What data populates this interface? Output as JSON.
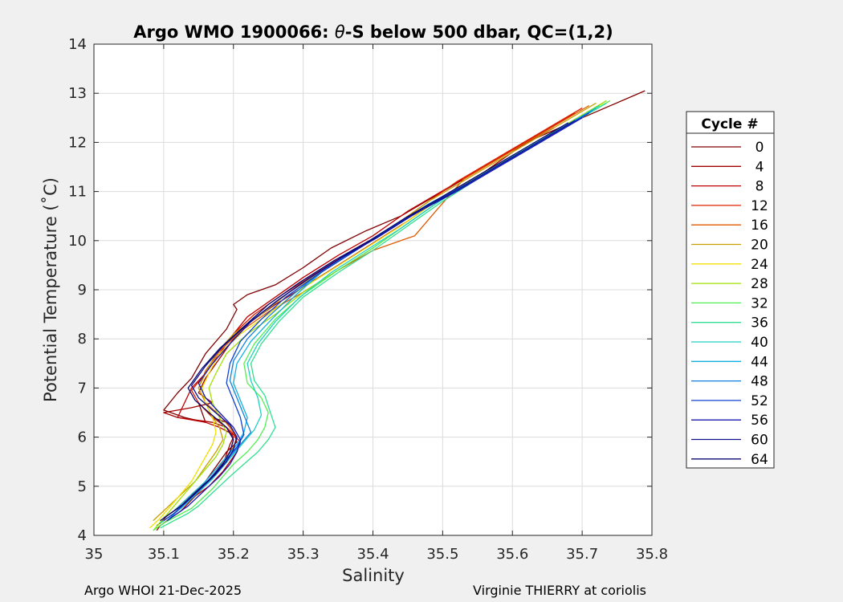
{
  "chart_data": {
    "type": "line",
    "title_prefix": "Argo WMO 1900066: ",
    "title_symbol": "θ",
    "title_suffix": "-S below 500 dbar,  QC=(1,2)",
    "xlabel": "Salinity",
    "ylabel": "Potential Temperature (˚C)",
    "xlim": [
      35,
      35.8
    ],
    "ylim": [
      4,
      14
    ],
    "xticks": [
      35,
      35.1,
      35.2,
      35.3,
      35.4,
      35.5,
      35.6,
      35.7,
      35.8
    ],
    "xtick_labels": [
      "35",
      "35.1",
      "35.2",
      "35.3",
      "35.4",
      "35.5",
      "35.6",
      "35.7",
      "35.8"
    ],
    "yticks": [
      4,
      5,
      6,
      7,
      8,
      9,
      10,
      11,
      12,
      13,
      14
    ],
    "ytick_labels": [
      "4",
      "5",
      "6",
      "7",
      "8",
      "9",
      "10",
      "11",
      "12",
      "13",
      "14"
    ],
    "grid": true,
    "legend_title": "Cycle #",
    "legend_position": "outside-right",
    "series": [
      {
        "name": "0",
        "color": "#800000",
        "x": [
          35.79,
          35.7,
          35.62,
          35.56,
          35.5,
          35.44,
          35.39,
          35.34,
          35.3,
          35.26,
          35.22,
          35.2,
          35.205,
          35.19,
          35.16,
          35.14,
          35.12,
          35.1,
          35.13,
          35.16,
          35.15,
          35.17,
          35.19,
          35.2,
          35.205,
          35.19,
          35.18,
          35.17,
          35.16,
          35.15,
          35.14,
          35.13,
          35.12,
          35.11,
          35.1,
          35.09
        ],
        "y": [
          13.05,
          12.5,
          12.0,
          11.5,
          11.0,
          10.5,
          10.2,
          9.85,
          9.45,
          9.1,
          8.9,
          8.7,
          8.6,
          8.2,
          7.7,
          7.2,
          6.9,
          6.55,
          6.4,
          6.3,
          6.7,
          6.4,
          6.3,
          6.1,
          5.9,
          5.7,
          5.5,
          5.3,
          5.1,
          4.95,
          4.8,
          4.65,
          4.5,
          4.4,
          4.3,
          4.2
        ]
      },
      {
        "name": "4",
        "color": "#a00000",
        "x": [
          35.66,
          35.61,
          35.56,
          35.5,
          35.45,
          35.4,
          35.35,
          35.3,
          35.26,
          35.22,
          35.2,
          35.18,
          35.16,
          35.15,
          35.17,
          35.14,
          35.1,
          35.12,
          35.17,
          35.19,
          35.2,
          35.195,
          35.19,
          35.185,
          35.175,
          35.165,
          35.155,
          35.145,
          35.135,
          35.125,
          35.115,
          35.105,
          35.095,
          35.09
        ],
        "y": [
          12.3,
          11.9,
          11.4,
          10.9,
          10.4,
          9.95,
          9.5,
          9.05,
          8.7,
          8.3,
          8.0,
          7.6,
          7.2,
          6.9,
          6.7,
          6.6,
          6.5,
          6.4,
          6.3,
          6.2,
          6.0,
          5.85,
          5.65,
          5.45,
          5.25,
          5.1,
          4.95,
          4.8,
          4.65,
          4.5,
          4.4,
          4.3,
          4.2,
          4.1
        ]
      },
      {
        "name": "8",
        "color": "#c00000",
        "x": [
          35.69,
          35.63,
          35.57,
          35.51,
          35.45,
          35.4,
          35.35,
          35.3,
          35.26,
          35.22,
          35.2,
          35.18,
          35.16,
          35.14,
          35.12,
          35.16,
          35.18,
          35.2,
          35.21,
          35.205,
          35.195,
          35.185,
          35.175,
          35.165,
          35.15,
          35.135,
          35.12,
          35.105,
          35.095
        ],
        "y": [
          12.6,
          12.1,
          11.6,
          11.1,
          10.6,
          10.1,
          9.7,
          9.25,
          8.85,
          8.45,
          8.1,
          7.7,
          7.3,
          7.0,
          6.4,
          6.3,
          6.2,
          6.05,
          5.9,
          5.7,
          5.5,
          5.3,
          5.15,
          5.0,
          4.85,
          4.7,
          4.55,
          4.4,
          4.25
        ]
      },
      {
        "name": "12",
        "color": "#e02000",
        "x": [
          35.7,
          35.64,
          35.58,
          35.52,
          35.47,
          35.42,
          35.37,
          35.32,
          35.27,
          35.23,
          35.2,
          35.18,
          35.16,
          35.14,
          35.15,
          35.17,
          35.19,
          35.205,
          35.2,
          35.19,
          35.18,
          35.17,
          35.16,
          35.145,
          35.13,
          35.115,
          35.1
        ],
        "y": [
          12.7,
          12.2,
          11.7,
          11.2,
          10.7,
          10.2,
          9.8,
          9.35,
          8.9,
          8.5,
          8.1,
          7.7,
          7.3,
          6.95,
          6.7,
          6.4,
          6.2,
          6.0,
          5.8,
          5.6,
          5.4,
          5.2,
          5.05,
          4.9,
          4.7,
          4.5,
          4.35
        ]
      },
      {
        "name": "16",
        "color": "#e05a00",
        "x": [
          35.71,
          35.65,
          35.59,
          35.53,
          35.49,
          35.46,
          35.4,
          35.35,
          35.3,
          35.25,
          35.21,
          35.18,
          35.16,
          35.15,
          35.16,
          35.18,
          35.195,
          35.205,
          35.2,
          35.19,
          35.18,
          35.17,
          35.16,
          35.145,
          35.13,
          35.115,
          35.1
        ],
        "y": [
          12.75,
          12.25,
          11.75,
          11.25,
          10.6,
          10.1,
          9.8,
          9.4,
          8.95,
          8.55,
          8.15,
          7.75,
          7.35,
          7.0,
          6.7,
          6.45,
          6.2,
          6.0,
          5.8,
          5.6,
          5.4,
          5.2,
          5.05,
          4.9,
          4.7,
          4.5,
          4.35
        ]
      },
      {
        "name": "20",
        "color": "#c8a000",
        "x": [
          35.72,
          35.66,
          35.6,
          35.54,
          35.48,
          35.43,
          35.38,
          35.33,
          35.28,
          35.24,
          35.2,
          35.175,
          35.16,
          35.15,
          35.16,
          35.17,
          35.18,
          35.185,
          35.175,
          35.165,
          35.155,
          35.145,
          35.13,
          35.115,
          35.1,
          35.085
        ],
        "y": [
          12.8,
          12.3,
          11.8,
          11.3,
          10.8,
          10.3,
          9.85,
          9.4,
          8.95,
          8.5,
          8.1,
          7.7,
          7.3,
          7.0,
          6.7,
          6.4,
          6.2,
          5.95,
          5.7,
          5.5,
          5.3,
          5.1,
          4.9,
          4.7,
          4.5,
          4.3
        ]
      },
      {
        "name": "24",
        "color": "#f0e000",
        "x": [
          35.73,
          35.67,
          35.61,
          35.55,
          35.49,
          35.44,
          35.39,
          35.34,
          35.29,
          35.25,
          35.21,
          35.18,
          35.165,
          35.155,
          35.16,
          35.17,
          35.175,
          35.17,
          35.16,
          35.15,
          35.14,
          35.125,
          35.11,
          35.095,
          35.08
        ],
        "y": [
          12.8,
          12.3,
          11.8,
          11.3,
          10.8,
          10.3,
          9.85,
          9.4,
          8.95,
          8.5,
          8.1,
          7.7,
          7.3,
          7.0,
          6.7,
          6.4,
          6.1,
          5.85,
          5.6,
          5.35,
          5.1,
          4.85,
          4.6,
          4.35,
          4.15
        ]
      },
      {
        "name": "28",
        "color": "#a0e000",
        "x": [
          35.735,
          35.675,
          35.615,
          35.555,
          35.5,
          35.45,
          35.4,
          35.35,
          35.3,
          35.26,
          35.22,
          35.19,
          35.175,
          35.165,
          35.17,
          35.18,
          35.19,
          35.185,
          35.175,
          35.16,
          35.145,
          35.13,
          35.115,
          35.1,
          35.085
        ],
        "y": [
          12.85,
          12.35,
          11.85,
          11.35,
          10.85,
          10.35,
          9.85,
          9.4,
          8.95,
          8.5,
          8.1,
          7.7,
          7.3,
          7.0,
          6.7,
          6.4,
          6.1,
          5.85,
          5.6,
          5.35,
          5.1,
          4.85,
          4.6,
          4.35,
          4.1
        ]
      },
      {
        "name": "32",
        "color": "#50f050",
        "x": [
          35.74,
          35.68,
          35.62,
          35.56,
          35.5,
          35.45,
          35.4,
          35.35,
          35.3,
          35.26,
          35.23,
          35.215,
          35.22,
          35.24,
          35.25,
          35.245,
          35.235,
          35.22,
          35.2,
          35.185,
          35.17,
          35.155,
          35.14,
          35.12,
          35.1,
          35.085
        ],
        "y": [
          12.85,
          12.35,
          11.85,
          11.35,
          10.85,
          10.35,
          9.85,
          9.4,
          8.9,
          8.4,
          7.9,
          7.5,
          7.1,
          6.8,
          6.5,
          6.2,
          5.95,
          5.7,
          5.45,
          5.2,
          4.95,
          4.75,
          4.55,
          4.4,
          4.25,
          4.1
        ]
      },
      {
        "name": "36",
        "color": "#30e090",
        "x": [
          35.735,
          35.675,
          35.615,
          35.555,
          35.5,
          35.45,
          35.4,
          35.35,
          35.3,
          35.265,
          35.24,
          35.225,
          35.23,
          35.245,
          35.26,
          35.25,
          35.235,
          35.215,
          35.195,
          35.18,
          35.165,
          35.15,
          35.135,
          35.115,
          35.095
        ],
        "y": [
          12.8,
          12.3,
          11.8,
          11.3,
          10.8,
          10.3,
          9.8,
          9.35,
          8.85,
          8.35,
          7.9,
          7.5,
          7.15,
          6.85,
          6.2,
          5.95,
          5.7,
          5.45,
          5.2,
          5.0,
          4.8,
          4.6,
          4.45,
          4.3,
          4.15
        ]
      },
      {
        "name": "40",
        "color": "#20d0c0",
        "x": [
          35.725,
          35.665,
          35.605,
          35.545,
          35.49,
          35.44,
          35.39,
          35.34,
          35.295,
          35.26,
          35.235,
          35.22,
          35.225,
          35.235,
          35.24,
          35.23,
          35.215,
          35.2,
          35.185,
          35.17,
          35.155,
          35.14,
          35.125,
          35.11,
          35.095
        ],
        "y": [
          12.75,
          12.25,
          11.75,
          11.25,
          10.75,
          10.25,
          9.8,
          9.35,
          8.85,
          8.35,
          7.9,
          7.5,
          7.15,
          6.8,
          6.45,
          6.15,
          5.9,
          5.65,
          5.4,
          5.15,
          4.95,
          4.75,
          4.55,
          4.4,
          4.25
        ]
      },
      {
        "name": "44",
        "color": "#10b0e0",
        "x": [
          35.72,
          35.66,
          35.6,
          35.54,
          35.48,
          35.43,
          35.38,
          35.33,
          35.29,
          35.255,
          35.225,
          35.205,
          35.2,
          35.21,
          35.22,
          35.215,
          35.205,
          35.19,
          35.175,
          35.16,
          35.145,
          35.13,
          35.115,
          35.1
        ],
        "y": [
          12.7,
          12.2,
          11.7,
          11.2,
          10.75,
          10.3,
          9.85,
          9.4,
          8.9,
          8.4,
          7.95,
          7.5,
          7.1,
          6.75,
          6.4,
          6.1,
          5.85,
          5.6,
          5.35,
          5.1,
          4.9,
          4.7,
          4.5,
          4.35
        ]
      },
      {
        "name": "48",
        "color": "#1080e0",
        "x": [
          35.715,
          35.655,
          35.595,
          35.535,
          35.475,
          35.425,
          35.375,
          35.325,
          35.285,
          35.25,
          35.22,
          35.2,
          35.195,
          35.205,
          35.215,
          35.225,
          35.21,
          35.195,
          35.18,
          35.165,
          35.15,
          35.135,
          35.12,
          35.105
        ],
        "y": [
          12.65,
          12.15,
          11.65,
          11.15,
          10.7,
          10.25,
          9.8,
          9.35,
          8.9,
          8.45,
          8.0,
          7.55,
          7.15,
          6.8,
          6.45,
          6.1,
          5.85,
          5.6,
          5.35,
          5.1,
          4.9,
          4.7,
          4.5,
          4.3
        ]
      },
      {
        "name": "52",
        "color": "#1040d0",
        "x": [
          35.71,
          35.65,
          35.59,
          35.53,
          35.47,
          35.42,
          35.37,
          35.32,
          35.275,
          35.24,
          35.21,
          35.195,
          35.19,
          35.2,
          35.21,
          35.215,
          35.205,
          35.19,
          35.175,
          35.16,
          35.145,
          35.13,
          35.115,
          35.1
        ],
        "y": [
          12.6,
          12.1,
          11.6,
          11.1,
          10.65,
          10.2,
          9.75,
          9.3,
          8.85,
          8.4,
          7.95,
          7.5,
          7.1,
          6.75,
          6.4,
          6.05,
          5.8,
          5.55,
          5.3,
          5.05,
          4.85,
          4.65,
          4.45,
          4.3
        ]
      },
      {
        "name": "56",
        "color": "#1818b0",
        "x": [
          35.7,
          35.64,
          35.58,
          35.52,
          35.46,
          35.41,
          35.36,
          35.31,
          35.265,
          35.225,
          35.195,
          35.17,
          35.15,
          35.16,
          35.18,
          35.2,
          35.21,
          35.205,
          35.195,
          35.18,
          35.165,
          35.15,
          35.135,
          35.12,
          35.105
        ],
        "y": [
          12.5,
          12.0,
          11.5,
          11.0,
          10.55,
          10.1,
          9.7,
          9.25,
          8.8,
          8.35,
          7.9,
          7.5,
          7.1,
          6.8,
          6.5,
          6.2,
          5.95,
          5.7,
          5.45,
          5.2,
          5.0,
          4.8,
          4.6,
          4.45,
          4.3
        ]
      },
      {
        "name": "60",
        "color": "#101090",
        "x": [
          35.69,
          35.63,
          35.57,
          35.51,
          35.455,
          35.405,
          35.355,
          35.305,
          35.26,
          35.22,
          35.185,
          35.16,
          35.14,
          35.15,
          35.17,
          35.195,
          35.205,
          35.2,
          35.19,
          35.175,
          35.16,
          35.145,
          35.13,
          35.115,
          35.1
        ],
        "y": [
          12.45,
          11.95,
          11.45,
          10.95,
          10.5,
          10.05,
          9.65,
          9.2,
          8.75,
          8.3,
          7.85,
          7.45,
          7.05,
          6.8,
          6.55,
          6.25,
          6.0,
          5.75,
          5.5,
          5.25,
          5.05,
          4.85,
          4.65,
          4.5,
          4.35
        ]
      },
      {
        "name": "64",
        "color": "#080870",
        "x": [
          35.68,
          35.62,
          35.56,
          35.5,
          35.445,
          35.395,
          35.345,
          35.295,
          35.25,
          35.215,
          35.18,
          35.155,
          35.135,
          35.145,
          35.165,
          35.19,
          35.2,
          35.195,
          35.185,
          35.17,
          35.155,
          35.14,
          35.125,
          35.11,
          35.095
        ],
        "y": [
          12.4,
          11.9,
          11.4,
          10.9,
          10.45,
          10.0,
          9.6,
          9.15,
          8.7,
          8.25,
          7.8,
          7.4,
          7.0,
          6.75,
          6.5,
          6.2,
          5.95,
          5.7,
          5.45,
          5.2,
          5.0,
          4.8,
          4.6,
          4.45,
          4.3
        ]
      }
    ]
  },
  "footer": {
    "left": "Argo WHOI 21-Dec-2025",
    "right": "Virginie THIERRY at coriolis"
  }
}
